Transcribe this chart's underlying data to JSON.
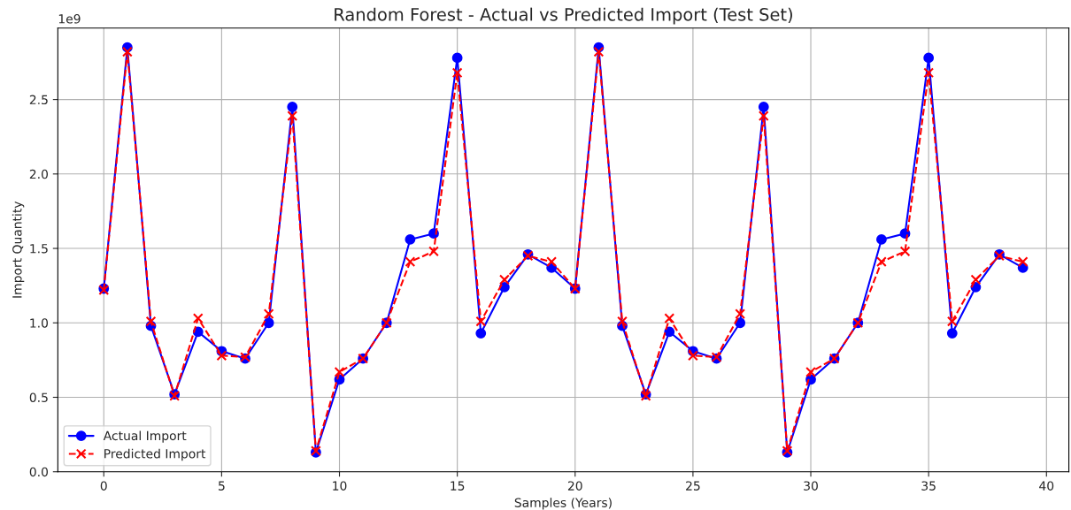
{
  "chart_data": {
    "type": "line",
    "title": "Random Forest - Actual vs Predicted Import (Test Set)",
    "xlabel": "Samples (Years)",
    "ylabel": "Import Quantity",
    "x": [
      0,
      1,
      2,
      3,
      4,
      5,
      6,
      7,
      8,
      9,
      10,
      11,
      12,
      13,
      14,
      15,
      16,
      17,
      18,
      19,
      20,
      21,
      22,
      23,
      24,
      25,
      26,
      27,
      28,
      29,
      30,
      31,
      32,
      33,
      34,
      35,
      36,
      37,
      38,
      39
    ],
    "series": [
      {
        "name": "Actual Import",
        "color": "#0000ff",
        "marker": "circle",
        "line_style": "solid",
        "values": [
          1.23,
          2.85,
          0.98,
          0.52,
          0.94,
          0.81,
          0.76,
          1.0,
          2.45,
          0.13,
          0.62,
          0.76,
          1.0,
          1.56,
          1.6,
          2.78,
          0.93,
          1.24,
          1.46,
          1.37,
          1.23,
          2.85,
          0.98,
          0.52,
          0.94,
          0.81,
          0.76,
          1.0,
          2.45,
          0.13,
          0.62,
          0.76,
          1.0,
          1.56,
          1.6,
          2.78,
          0.93,
          1.24,
          1.46,
          1.37
        ]
      },
      {
        "name": "Predicted Import",
        "color": "#ff0000",
        "marker": "cross",
        "line_style": "dashed",
        "values": [
          1.22,
          2.82,
          1.01,
          0.51,
          1.03,
          0.78,
          0.77,
          1.06,
          2.39,
          0.14,
          0.67,
          0.76,
          1.0,
          1.41,
          1.48,
          2.68,
          1.01,
          1.29,
          1.45,
          1.41,
          1.23,
          2.82,
          1.01,
          0.51,
          1.03,
          0.78,
          0.77,
          1.06,
          2.39,
          0.14,
          0.67,
          0.76,
          1.0,
          1.41,
          1.48,
          2.68,
          1.01,
          1.29,
          1.45,
          1.41
        ]
      }
    ],
    "xlim": [
      -1.95,
      40.95
    ],
    "xticks": [
      0,
      5,
      10,
      15,
      20,
      25,
      30,
      35,
      40
    ],
    "ylim": [
      0,
      2.98
    ],
    "yticks": [
      {
        "value": 0,
        "label": "0.0"
      },
      {
        "value": 0.5,
        "label": "0.5"
      },
      {
        "value": 1,
        "label": "1.0"
      },
      {
        "value": 1.5,
        "label": "1.5"
      },
      {
        "value": 2,
        "label": "2.0"
      },
      {
        "value": 2.5,
        "label": "2.5"
      }
    ],
    "annotations": [
      "1e9"
    ],
    "grid": true,
    "legend": "lower left"
  }
}
